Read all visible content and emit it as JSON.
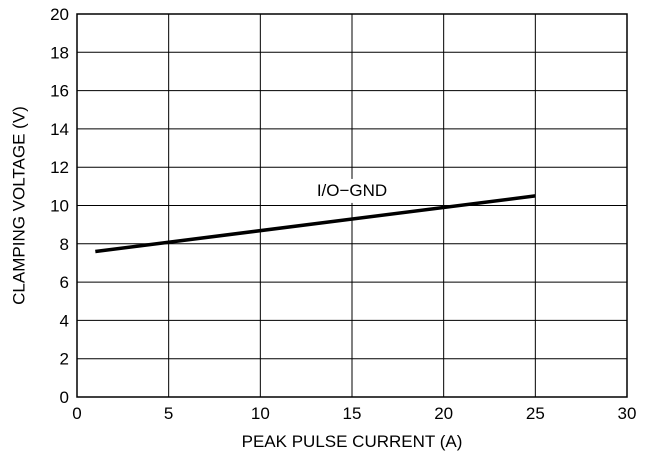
{
  "chart_data": {
    "type": "line",
    "title": "",
    "xlabel": "PEAK PULSE CURRENT (A)",
    "ylabel": "CLAMPING VOLTAGE (V)",
    "xlim": [
      0,
      30
    ],
    "ylim": [
      0,
      20
    ],
    "xticks": [
      "0",
      "5",
      "10",
      "15",
      "20",
      "25",
      "30"
    ],
    "yticks": [
      "0",
      "2",
      "4",
      "6",
      "8",
      "10",
      "12",
      "14",
      "16",
      "18",
      "20"
    ],
    "grid": true,
    "series": [
      {
        "name": "I/O−GND",
        "x": [
          1,
          25
        ],
        "y": [
          7.6,
          10.5
        ]
      }
    ],
    "annotations": [
      {
        "text": "I/O−GND",
        "x": 15,
        "y": 10.5
      }
    ]
  }
}
